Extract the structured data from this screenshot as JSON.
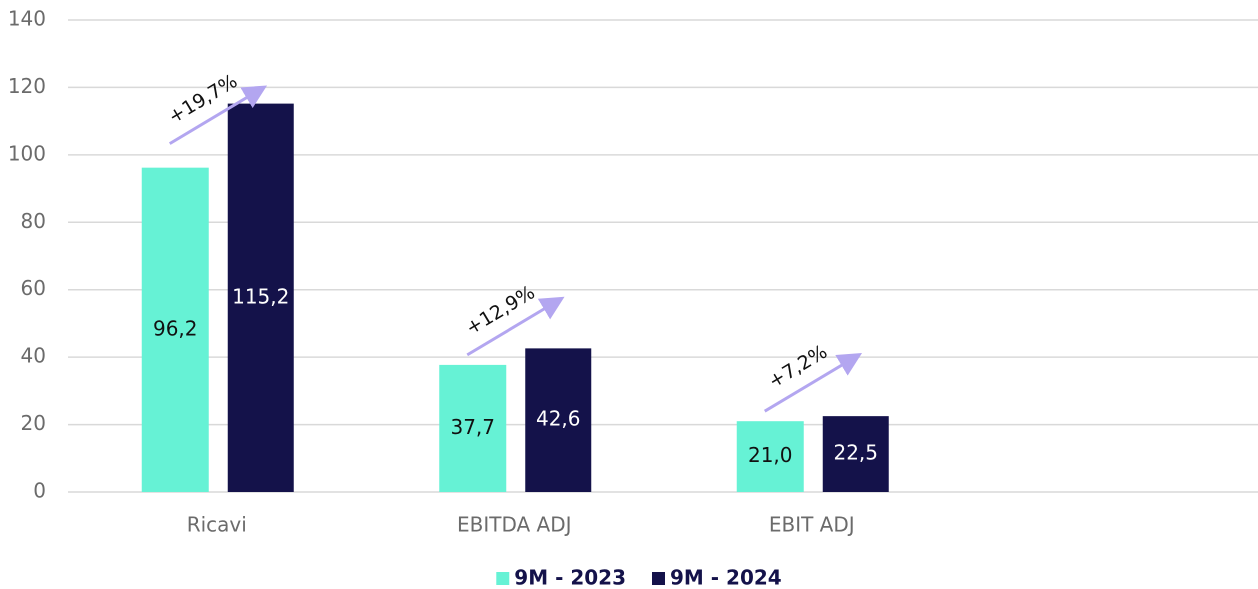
{
  "chart_data": {
    "type": "bar",
    "categories": [
      "Ricavi",
      "EBITDA ADJ",
      "EBIT ADJ",
      null
    ],
    "series": [
      {
        "name": "9M - 2023",
        "color": "#66f2d5",
        "label_color": "#111111",
        "values": [
          96.2,
          37.7,
          21.0,
          null
        ],
        "value_labels": [
          "96,2",
          "37,7",
          "21,0",
          null
        ]
      },
      {
        "name": "9M - 2024",
        "color": "#14124a",
        "label_color": "#ffffff",
        "values": [
          115.2,
          42.6,
          22.5,
          null
        ],
        "value_labels": [
          "115,2",
          "42,6",
          "22,5",
          null
        ]
      }
    ],
    "annotations": [
      "+19,7%",
      "+12,9%",
      "+7,2%"
    ],
    "arrow_color": "#b3a6f0",
    "ylim": [
      0,
      140
    ],
    "yticks": [
      0,
      20,
      40,
      60,
      80,
      100,
      120,
      140
    ],
    "grid": true,
    "legend": "bottom"
  }
}
